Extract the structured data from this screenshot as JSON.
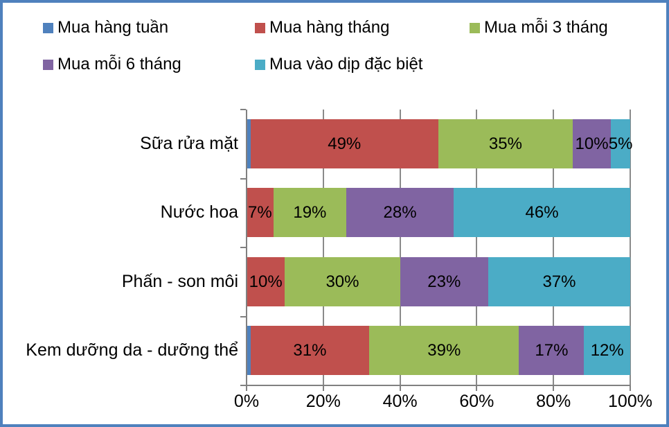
{
  "frame": {
    "border_color": "#4F81BD",
    "background": "#FFFFFF"
  },
  "legend": {
    "position": "top",
    "items": [
      {
        "label": "Mua hàng tuần",
        "color": "#4F81BD"
      },
      {
        "label": "Mua hàng tháng",
        "color": "#C0504D"
      },
      {
        "label": "Mua mỗi 3 tháng",
        "color": "#9BBB59"
      },
      {
        "label": "Mua mỗi 6 tháng",
        "color": "#8064A2"
      },
      {
        "label": "Mua vào dịp đặc biệt",
        "color": "#4BACC6"
      }
    ]
  },
  "chart_data": {
    "type": "bar",
    "subtype": "stacked-100",
    "orientation": "horizontal",
    "title": "",
    "xlabel": "",
    "ylabel": "",
    "unit": "%",
    "grid": true,
    "legend_position": "top",
    "categories": [
      "Sữa rửa mặt",
      "Nước hoa",
      "Phấn - son môi",
      "Kem dưỡng da - dưỡng thể"
    ],
    "series": [
      {
        "name": "Mua hàng tuần",
        "color": "#4F81BD",
        "values": [
          1,
          0,
          0,
          1
        ]
      },
      {
        "name": "Mua hàng tháng",
        "color": "#C0504D",
        "values": [
          49,
          7,
          10,
          31
        ]
      },
      {
        "name": "Mua mỗi 3 tháng",
        "color": "#9BBB59",
        "values": [
          35,
          19,
          30,
          39
        ]
      },
      {
        "name": "Mua mỗi 6 tháng",
        "color": "#8064A2",
        "values": [
          10,
          28,
          23,
          17
        ]
      },
      {
        "name": "Mua vào dịp đặc biệt",
        "color": "#4BACC6",
        "values": [
          5,
          46,
          37,
          12
        ]
      }
    ],
    "data_labels": true,
    "data_label_format": "{value}%",
    "data_label_min_value_shown": 5,
    "x_axis": {
      "range": [
        0,
        100
      ],
      "tick_labels": [
        "0%",
        "20%",
        "40%",
        "60%",
        "80%",
        "100%"
      ],
      "line_color": "#808080",
      "gridline_color": "#8A8A8A"
    }
  }
}
